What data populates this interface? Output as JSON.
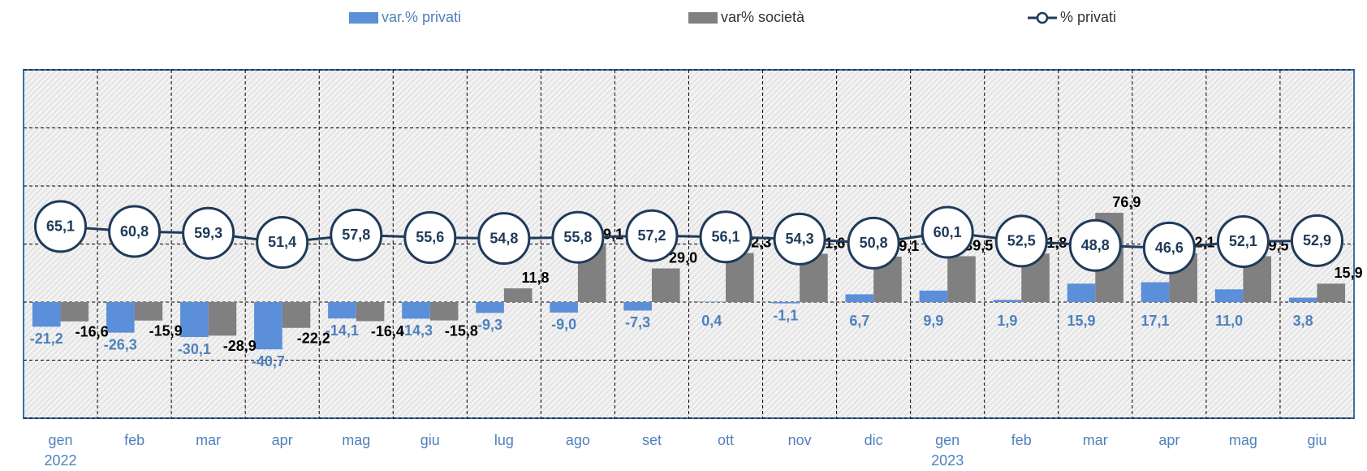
{
  "chart_data": {
    "type": "bar",
    "categories": [
      [
        "gen",
        "2022"
      ],
      "feb",
      "mar",
      "apr",
      "mag",
      "giu",
      "lug",
      "ago",
      "set",
      "ott",
      "nov",
      "dic",
      [
        "gen",
        "2023"
      ],
      "feb",
      "mar",
      "apr",
      "mag",
      "giu"
    ],
    "series": [
      {
        "name": "var.% privati",
        "type": "bar",
        "color": "#5b8fd9",
        "values": [
          -21.2,
          -26.3,
          -30.1,
          -40.7,
          -14.1,
          -14.3,
          -9.3,
          -9.0,
          -7.3,
          0.4,
          -1.1,
          6.7,
          9.9,
          1.9,
          15.9,
          17.1,
          11.0,
          3.8
        ],
        "value_labels": [
          "-21,2",
          "-26,3",
          "-30,1",
          "-40,7",
          "-14,1",
          "-14,3",
          "-9,3",
          "-9,0",
          "-7,3",
          "0,4",
          "-1,1",
          "6,7",
          "9,9",
          "1,9",
          "15,9",
          "17,1",
          "11,0",
          "3,8"
        ]
      },
      {
        "name": "var% società",
        "type": "bar",
        "color": "#808080",
        "values": [
          -16.6,
          -15.9,
          -28.9,
          -22.2,
          -16.4,
          -15.8,
          11.8,
          49.1,
          29.0,
          42.3,
          41.6,
          39.1,
          39.5,
          41.8,
          76.9,
          42.1,
          39.5,
          15.9
        ],
        "value_labels": [
          "-16,6",
          "-15,9",
          "-28,9",
          "-22,2",
          "-16,4",
          "-15,8",
          "11,8",
          "49,1",
          "29,0",
          "42,3",
          "41,6",
          "39,1",
          "39,5",
          "41,8",
          "76,9",
          "42,1",
          "39,5",
          "15,9"
        ]
      },
      {
        "name": "% privati",
        "type": "line",
        "color": "#1f3a5a",
        "values": [
          65.1,
          60.8,
          59.3,
          51.4,
          57.8,
          55.6,
          54.8,
          55.8,
          57.2,
          56.1,
          54.3,
          50.8,
          60.1,
          52.5,
          48.8,
          46.6,
          52.1,
          52.9
        ],
        "value_labels": [
          "65,1",
          "60,8",
          "59,3",
          "51,4",
          "57,8",
          "55,6",
          "54,8",
          "55,8",
          "57,2",
          "56,1",
          "54,3",
          "50,8",
          "60,1",
          "52,5",
          "48,8",
          "46,6",
          "52,1",
          "52,9"
        ]
      }
    ],
    "ylim": [
      -100,
      200
    ],
    "yticks": [
      -100,
      -50,
      0,
      50,
      100,
      150,
      200
    ],
    "grid": true,
    "legend": "top"
  }
}
